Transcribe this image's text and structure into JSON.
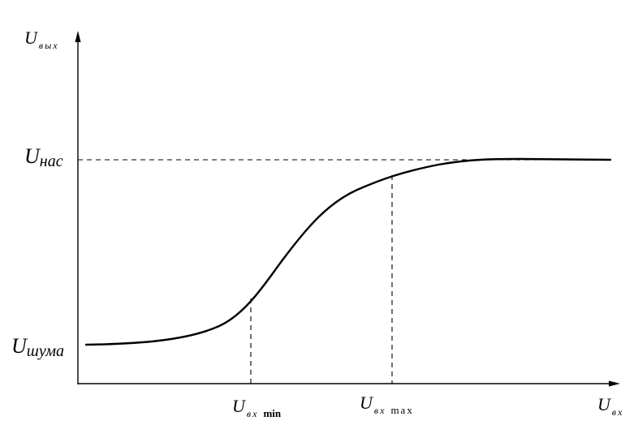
{
  "y_axis_label": {
    "main": "U",
    "sub": "вых"
  },
  "x_axis_label": {
    "main": "U",
    "sub": "вх"
  },
  "level_labels": {
    "saturation": {
      "main": "U",
      "sub": "нас"
    },
    "noise": {
      "main": "U",
      "sub": "шума"
    }
  },
  "tick_labels": {
    "min": {
      "main": "U",
      "sub": "вх",
      "suffix": "min"
    },
    "max": {
      "main": "U",
      "sub": "вх",
      "suffix": "max"
    }
  },
  "colors": {
    "ink": "#000000",
    "background": "#ffffff"
  },
  "curve": {
    "shape": "sigmoid",
    "low_level": "U шума",
    "high_level": "U нас",
    "dashed_markers": [
      "U вх min",
      "U вх max"
    ]
  }
}
